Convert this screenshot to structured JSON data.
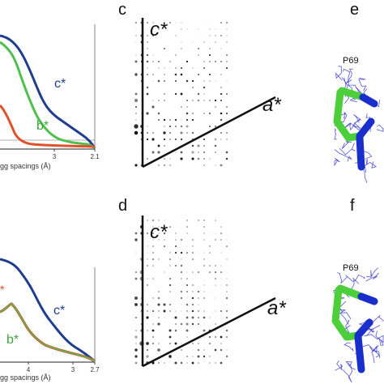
{
  "panels": {
    "c_letter": "c",
    "d_letter": "d",
    "e_letter": "e",
    "f_letter": "f"
  },
  "chart_data": [
    {
      "type": "line",
      "xlabel": "Bragg spacings (Å)",
      "xlabel_visible": "gg spacings (Å)",
      "xticks": [
        "3",
        "2.1"
      ],
      "series": [
        {
          "name": "c*",
          "color": "#1f3d8f"
        },
        {
          "name": "b*",
          "color": "#4fbf4f"
        },
        {
          "name": "",
          "color": "#e0502a"
        }
      ]
    },
    {
      "type": "line",
      "xlabel": "Bragg spacings (Å)",
      "xlabel_visible": "gg spacings (Å)",
      "xticks": [
        "4",
        "3",
        "2.7"
      ],
      "series": [
        {
          "name": "c*",
          "color": "#1f3d8f"
        },
        {
          "name": "b*",
          "color": "#4fbf4f"
        },
        {
          "name": "",
          "color": "#e0502a"
        }
      ]
    }
  ],
  "patterns": {
    "c": {
      "vertical_axis": "c*",
      "diagonal_axis": "a*"
    },
    "d": {
      "vertical_axis": "c*",
      "diagonal_axis": "a*"
    }
  },
  "density": {
    "e": {
      "residue": "P69"
    },
    "f": {
      "residue": "P69"
    }
  },
  "colors": {
    "mesh": "#3a3acb",
    "stick_carbon": "#4ccf3a",
    "stick_nitrogen": "#1a2ecc"
  }
}
